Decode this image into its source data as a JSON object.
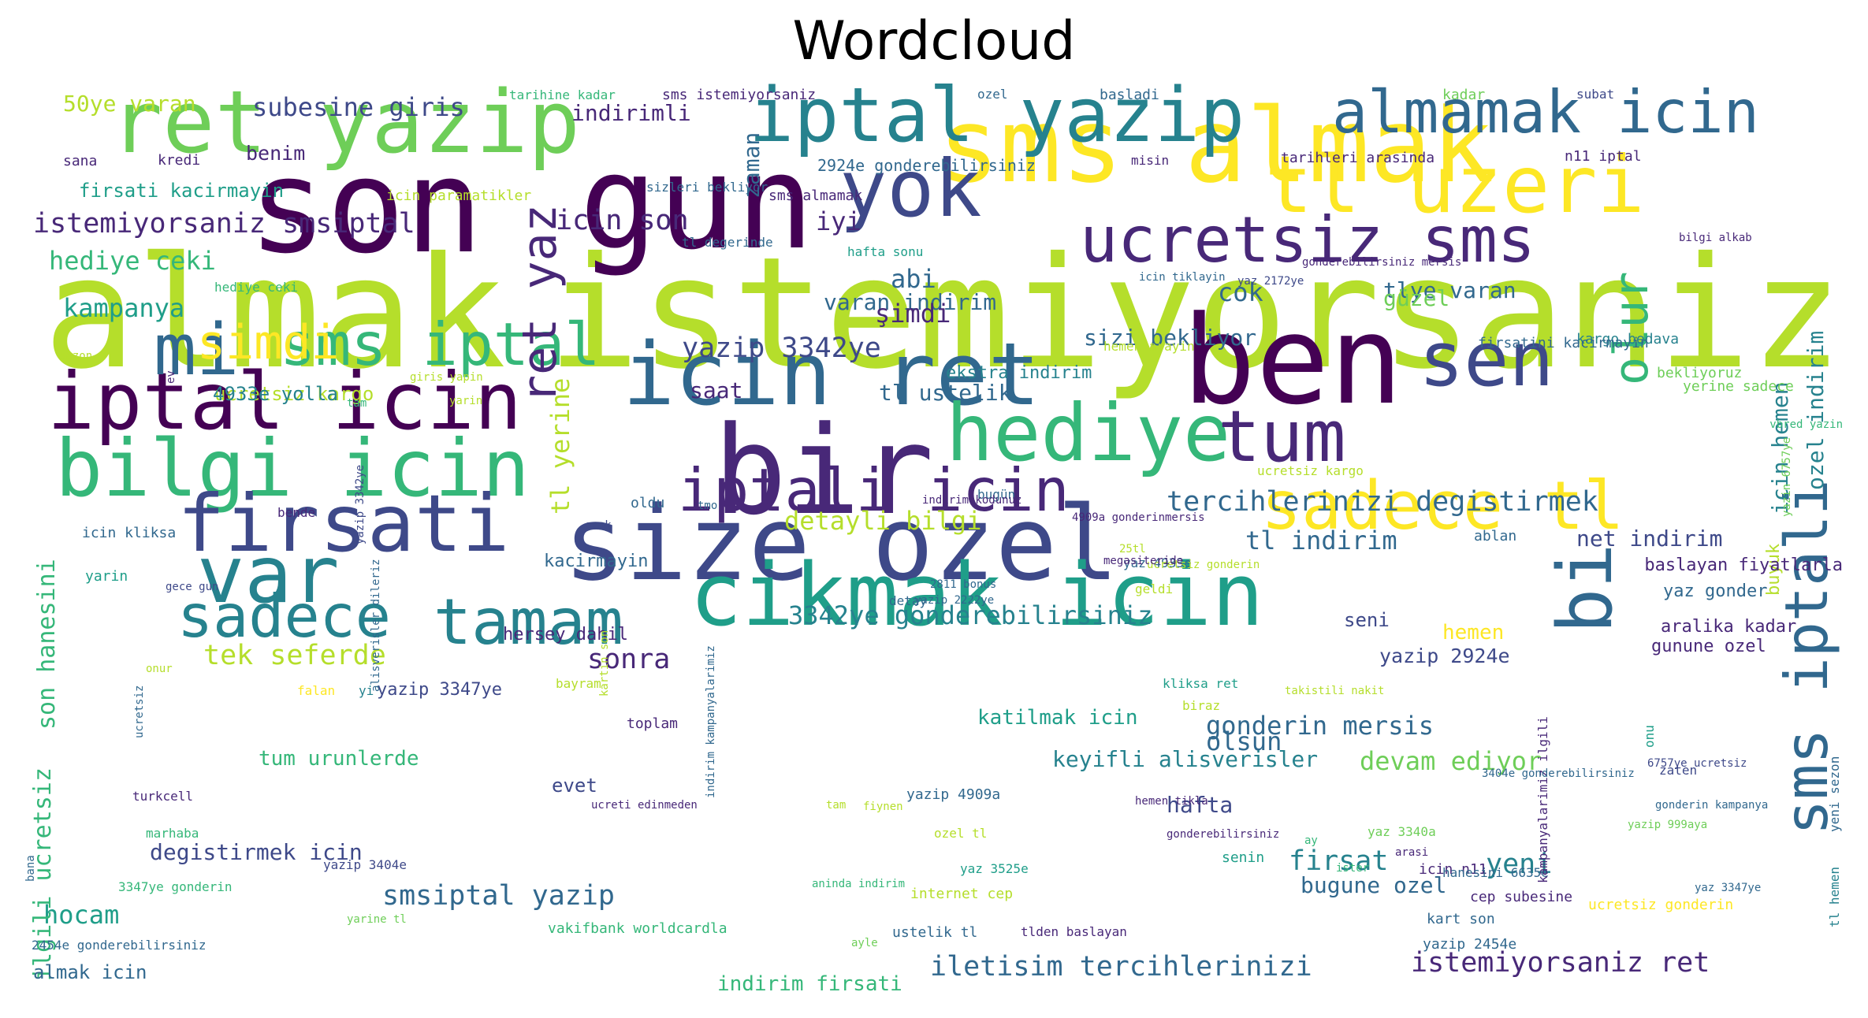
{
  "title": "Wordcloud",
  "palette": {
    "c1": "#440154",
    "c2": "#482878",
    "c3": "#3e4989",
    "c4": "#31688e",
    "c5": "#26828e",
    "c6": "#1f9e89",
    "c7": "#35b779",
    "c8": "#6ece58",
    "c9": "#b5de2b",
    "c10": "#fde725",
    "background": "#ffffff"
  },
  "words": [
    {
      "text": "almak",
      "color": "c9"
    },
    {
      "text": "istemiyorsaniz",
      "color": "c9"
    },
    {
      "text": "son",
      "color": "c1"
    },
    {
      "text": "gun",
      "color": "c1"
    },
    {
      "text": "sms almak",
      "color": "c10"
    },
    {
      "text": "ben",
      "color": "c1"
    },
    {
      "text": "bir",
      "color": "c2"
    },
    {
      "text": "size ozel",
      "color": "c3"
    },
    {
      "text": "icin ret",
      "color": "c4"
    },
    {
      "text": "cikmak icin",
      "color": "c6"
    },
    {
      "text": "ret yazip",
      "color": "c8"
    },
    {
      "text": "iptal yazip",
      "color": "c5"
    },
    {
      "text": "tl uzeri",
      "color": "c10"
    },
    {
      "text": "iptal icin",
      "color": "c1"
    },
    {
      "text": "bilgi icin",
      "color": "c7"
    },
    {
      "text": "firsati",
      "color": "c3"
    },
    {
      "text": "yok",
      "color": "c3"
    },
    {
      "text": "hediye",
      "color": "c7"
    },
    {
      "text": "var",
      "color": "c5"
    },
    {
      "text": "tamam",
      "color": "c5"
    },
    {
      "text": "sadece tl",
      "color": "c10"
    },
    {
      "text": "ucretsiz sms",
      "color": "c2"
    },
    {
      "text": "almamak icin",
      "color": "c4"
    },
    {
      "text": "tum",
      "color": "c2"
    },
    {
      "text": "sen",
      "color": "c3"
    },
    {
      "text": "bi",
      "color": "c4"
    },
    {
      "text": "mi",
      "color": "c4"
    },
    {
      "text": "sms iptal",
      "color": "c7"
    },
    {
      "text": "sms iptali",
      "color": "c4"
    },
    {
      "text": "iptali icin",
      "color": "c2"
    },
    {
      "text": "sadece",
      "color": "c5"
    },
    {
      "text": "simdi",
      "color": "c10"
    },
    {
      "text": "ret yaz",
      "color": "c2"
    },
    {
      "text": "olur",
      "color": "c7"
    },
    {
      "text": "tercihlerinizi degistirmek",
      "color": "c4"
    },
    {
      "text": "istemiyorsaniz smsiptal",
      "color": "c2"
    },
    {
      "text": "yazip 3342ye",
      "color": "c3"
    },
    {
      "text": "icin son",
      "color": "c2"
    },
    {
      "text": "hediye ceki",
      "color": "c7"
    },
    {
      "text": "kampanya",
      "color": "c6"
    },
    {
      "text": "subesine giris",
      "color": "c3"
    },
    {
      "text": "detayli bilgi",
      "color": "c9"
    },
    {
      "text": "tl indirim",
      "color": "c4"
    },
    {
      "text": "3342ye gonderebilirsiniz",
      "color": "c5"
    },
    {
      "text": "tek seferde",
      "color": "c9"
    },
    {
      "text": "sonra",
      "color": "c2"
    },
    {
      "text": "gonderin mersis",
      "color": "c4"
    },
    {
      "text": "olsun",
      "color": "c4"
    },
    {
      "text": "devam ediyor",
      "color": "c8"
    },
    {
      "text": "keyifli alisverisler",
      "color": "c5"
    },
    {
      "text": "iletisim tercihlerinizi",
      "color": "c4"
    },
    {
      "text": "istemiyorsaniz ret",
      "color": "c2"
    },
    {
      "text": "smsiptal yazip",
      "color": "c4"
    },
    {
      "text": "degistirmek icin",
      "color": "c3"
    },
    {
      "text": "hocam",
      "color": "c6"
    },
    {
      "text": "firsat",
      "color": "c5"
    },
    {
      "text": "yeni",
      "color": "c5"
    },
    {
      "text": "bugune ozel",
      "color": "c4"
    },
    {
      "text": "hafta",
      "color": "c3"
    },
    {
      "text": "net indirim",
      "color": "c3"
    },
    {
      "text": "yazip 2924e",
      "color": "c3"
    },
    {
      "text": "icin hemen",
      "color": "c5"
    },
    {
      "text": "ozel indirim",
      "color": "c5"
    },
    {
      "text": "varan indirim",
      "color": "c4"
    },
    {
      "text": "tlye varan",
      "color": "c4"
    },
    {
      "text": "abi",
      "color": "c4"
    },
    {
      "text": "şimdi",
      "color": "c2"
    },
    {
      "text": "cok",
      "color": "c4"
    },
    {
      "text": "güzel",
      "color": "c8"
    },
    {
      "text": "iyi",
      "color": "c2"
    },
    {
      "text": "zaman",
      "color": "c4"
    },
    {
      "text": "sizi bekliyor",
      "color": "c4"
    },
    {
      "text": "tl ustelik",
      "color": "c4"
    },
    {
      "text": "saat",
      "color": "c2"
    },
    {
      "text": "tl yerine",
      "color": "c9"
    },
    {
      "text": "son hanesini",
      "color": "c7"
    },
    {
      "text": "ilgili ucretsiz",
      "color": "c7"
    },
    {
      "text": "50ye varan",
      "color": "c9"
    },
    {
      "text": "indirimli",
      "color": "c2"
    },
    {
      "text": "benim",
      "color": "c2"
    },
    {
      "text": "firsati kacirmayin",
      "color": "c6"
    },
    {
      "text": "ucretsiz kargo",
      "color": "c9"
    },
    {
      "text": "tum urunlerde",
      "color": "c7"
    },
    {
      "text": "indirim firsati",
      "color": "c7"
    },
    {
      "text": "almak icin",
      "color": "c4"
    },
    {
      "text": "katilmak icin",
      "color": "c6"
    },
    {
      "text": "evet",
      "color": "c3"
    },
    {
      "text": "seni",
      "color": "c3"
    },
    {
      "text": "hemen",
      "color": "c10"
    },
    {
      "text": "buyuk",
      "color": "c9"
    },
    {
      "text": "yazip 3347ye",
      "color": "c3"
    },
    {
      "text": "hersey dahil",
      "color": "c2"
    },
    {
      "text": "kacirmayin",
      "color": "c4"
    },
    {
      "text": "aralika kadar",
      "color": "c2"
    },
    {
      "text": "gunune ozel",
      "color": "c2"
    },
    {
      "text": "yaz gonder",
      "color": "c4"
    },
    {
      "text": "baslayan fiyatlarla",
      "color": "c2"
    },
    {
      "text": "ekstra indirim",
      "color": "c5"
    },
    {
      "text": "icin son",
      "color": "c2"
    },
    {
      "text": "2924e gonderebilirsiniz",
      "color": "c4"
    },
    {
      "text": "sms almamak",
      "color": "c2"
    },
    {
      "text": "tarihleri arasinda",
      "color": "c2"
    },
    {
      "text": "n11 iptal",
      "color": "c2"
    },
    {
      "text": "kredi",
      "color": "c2"
    },
    {
      "text": "sana",
      "color": "c2"
    },
    {
      "text": "icin paramatikler",
      "color": "c9"
    },
    {
      "text": "sizleri bekliyor",
      "color": "c4"
    },
    {
      "text": "hafta sonu",
      "color": "c6"
    },
    {
      "text": "tl degerinde",
      "color": "c4"
    },
    {
      "text": "hediye ceki",
      "color": "c7"
    },
    {
      "text": "kargo bedava",
      "color": "c5"
    },
    {
      "text": "firsatini kacirmayin",
      "color": "c4"
    },
    {
      "text": "bekliyoruz",
      "color": "c8"
    },
    {
      "text": "yerine sadece",
      "color": "c8"
    },
    {
      "text": "hemen arayin",
      "color": "c9"
    },
    {
      "text": "4933e yolla",
      "color": "c5"
    },
    {
      "text": "ucretsiz kargo",
      "color": "c9"
    },
    {
      "text": "bugün",
      "color": "c4"
    },
    {
      "text": "oldu",
      "color": "c4"
    },
    {
      "text": "bende",
      "color": "c2"
    },
    {
      "text": "icin kliksa",
      "color": "c4"
    },
    {
      "text": "yarin",
      "color": "c6"
    },
    {
      "text": "ablan",
      "color": "c4"
    },
    {
      "text": "yaz 4933e",
      "color": "c4"
    },
    {
      "text": "geldi",
      "color": "c9"
    },
    {
      "text": "detay",
      "color": "c4"
    },
    {
      "text": "yazip 2454e",
      "color": "c4"
    },
    {
      "text": "kart son",
      "color": "c4"
    },
    {
      "text": "cep subesine",
      "color": "c2"
    },
    {
      "text": "ucretsiz gonderin",
      "color": "c10"
    },
    {
      "text": "ustelik tl",
      "color": "c4"
    },
    {
      "text": "internet cep",
      "color": "c9"
    },
    {
      "text": "tlden baslayan",
      "color": "c2"
    },
    {
      "text": "vakifbank worldcardla",
      "color": "c7"
    },
    {
      "text": "yazip 3404e",
      "color": "c3"
    },
    {
      "text": "yaz 3525e",
      "color": "c6"
    },
    {
      "text": "turkcell",
      "color": "c2"
    },
    {
      "text": "marhaba",
      "color": "c7"
    },
    {
      "text": "ozel tl",
      "color": "c9"
    },
    {
      "text": "3347ye gonderin",
      "color": "c7"
    },
    {
      "text": "2454e gonderebilirsiniz",
      "color": "c4"
    },
    {
      "text": "yazip 4909a",
      "color": "c4"
    },
    {
      "text": "icin n11",
      "color": "c2"
    },
    {
      "text": "senin",
      "color": "c6"
    },
    {
      "text": "yaz 3340a",
      "color": "c8"
    },
    {
      "text": "hanesini 6635e",
      "color": "c4"
    },
    {
      "text": "kampanyalarimiz ilgili",
      "color": "c2"
    },
    {
      "text": "tl hemen",
      "color": "c5"
    },
    {
      "text": "yeni sezon",
      "color": "c4"
    },
    {
      "text": "hemen tikla",
      "color": "c2"
    },
    {
      "text": "gonderebilirsiniz",
      "color": "c2"
    },
    {
      "text": "3404e gonderebilirsiniz",
      "color": "c4"
    },
    {
      "text": "icin tiklayin",
      "color": "c4"
    },
    {
      "text": "basladi",
      "color": "c4"
    },
    {
      "text": "kadar",
      "color": "c8"
    },
    {
      "text": "ozel",
      "color": "c4"
    },
    {
      "text": "sms istemiyorsaniz",
      "color": "c2"
    },
    {
      "text": "tarihine kadar",
      "color": "c7"
    },
    {
      "text": "subat",
      "color": "c3"
    },
    {
      "text": "misin",
      "color": "c2"
    },
    {
      "text": "bayram",
      "color": "c9"
    },
    {
      "text": "falan",
      "color": "c10"
    },
    {
      "text": "yi",
      "color": "c5"
    },
    {
      "text": "toplam",
      "color": "c2"
    },
    {
      "text": "kliksa ret",
      "color": "c6"
    },
    {
      "text": "biraz",
      "color": "c9"
    },
    {
      "text": "zaten",
      "color": "c3"
    },
    {
      "text": "onu",
      "color": "c6"
    },
    {
      "text": "sezon",
      "color": "c9"
    },
    {
      "text": "tam",
      "color": "c7"
    },
    {
      "text": "yaz 2172ye",
      "color": "c3"
    },
    {
      "text": "4909a gonderinmersis",
      "color": "c2"
    },
    {
      "text": "25tl",
      "color": "c9"
    },
    {
      "text": "ay",
      "color": "c7"
    },
    {
      "text": "arasi",
      "color": "c2"
    },
    {
      "text": "ister",
      "color": "c7"
    },
    {
      "text": "aninda indirim",
      "color": "c7"
    },
    {
      "text": "kartin son",
      "color": "c9"
    },
    {
      "text": "indirim kampanyalarimiz",
      "color": "c4"
    },
    {
      "text": "alisverisler dileriz",
      "color": "c4"
    },
    {
      "text": "ucretsiz",
      "color": "c4"
    },
    {
      "text": "bana",
      "color": "c4"
    },
    {
      "text": "ev",
      "color": "c2"
    },
    {
      "text": "onur",
      "color": "c9"
    },
    {
      "text": "yazip 3342ye",
      "color": "c3"
    },
    {
      "text": "yarin",
      "color": "c9"
    },
    {
      "text": "ocak",
      "color": "c3"
    },
    {
      "text": "yazin 6757ye",
      "color": "c8"
    },
    {
      "text": "vbred yazin",
      "color": "c7"
    },
    {
      "text": "yaz 3347ye",
      "color": "c4"
    },
    {
      "text": "gece gun",
      "color": "c3"
    },
    {
      "text": "bilgi alkab",
      "color": "c2"
    },
    {
      "text": "gonderin kampanya",
      "color": "c4"
    },
    {
      "text": "giris yapin",
      "color": "c9"
    },
    {
      "text": "ayle",
      "color": "c8"
    },
    {
      "text": "yarine tl",
      "color": "c8"
    },
    {
      "text": "tam",
      "color": "c9"
    },
    {
      "text": "ucreti edinmeden",
      "color": "c2"
    },
    {
      "text": "ucretsiz gonderin",
      "color": "c9"
    },
    {
      "text": "megasiteride",
      "color": "c2"
    },
    {
      "text": "indirim kodunuz",
      "color": "c2"
    },
    {
      "text": "yazip 2222ye",
      "color": "c4"
    },
    {
      "text": "2811 bonus",
      "color": "c4"
    },
    {
      "text": "yazip 999aya",
      "color": "c8"
    },
    {
      "text": "6757ye ucretsiz",
      "color": "c3"
    },
    {
      "text": "takistili nakit",
      "color": "c9"
    },
    {
      "text": "gonderebilirsiniz mersis",
      "color": "c2"
    },
    {
      "text": "fiynen",
      "color": "c9"
    },
    {
      "text": "tmo",
      "color": "c4"
    }
  ]
}
